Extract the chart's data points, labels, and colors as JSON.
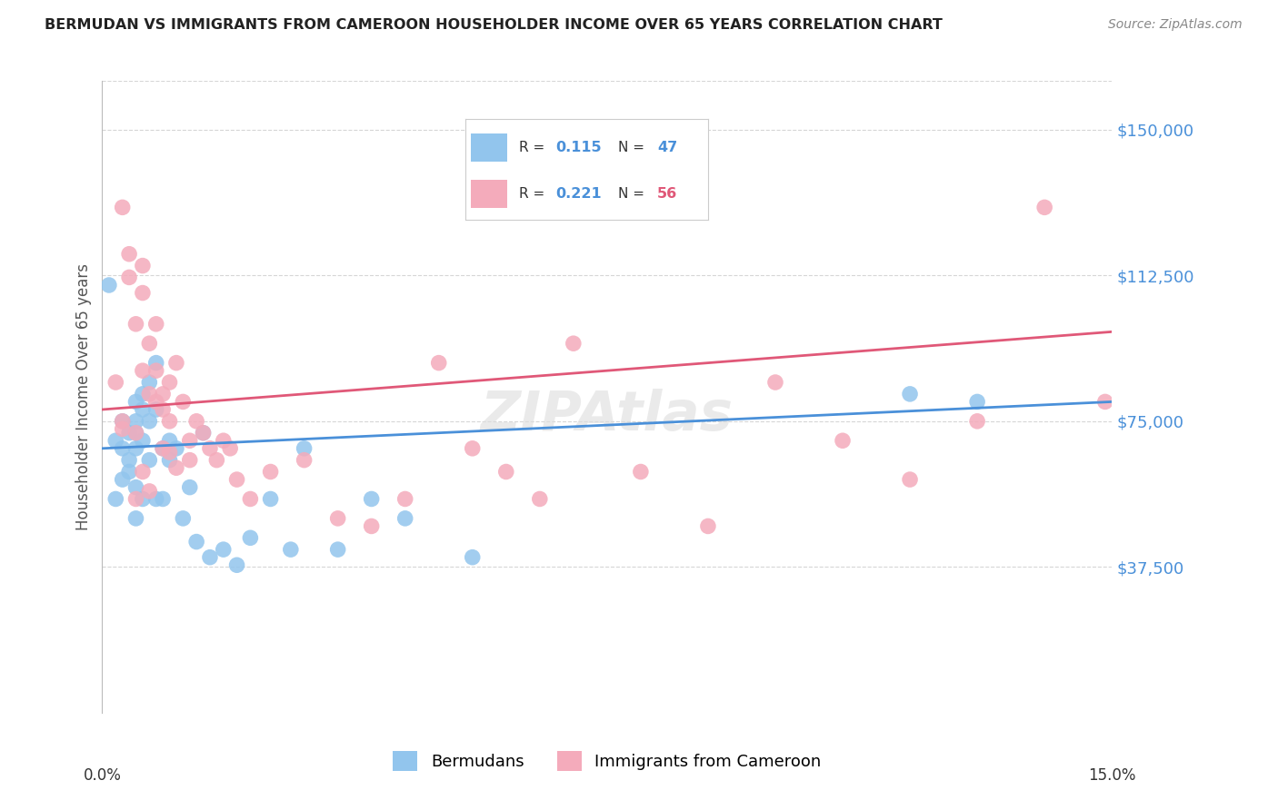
{
  "title": "BERMUDAN VS IMMIGRANTS FROM CAMEROON HOUSEHOLDER INCOME OVER 65 YEARS CORRELATION CHART",
  "source": "Source: ZipAtlas.com",
  "ylabel": "Householder Income Over 65 years",
  "ytick_labels": [
    "$37,500",
    "$75,000",
    "$112,500",
    "$150,000"
  ],
  "ytick_values": [
    37500,
    75000,
    112500,
    150000
  ],
  "xlim": [
    0.0,
    0.15
  ],
  "ylim": [
    0,
    162500
  ],
  "legend_r_blue": "0.115",
  "legend_n_blue": "47",
  "legend_r_pink": "0.221",
  "legend_n_pink": "56",
  "blue_color": "#92C5ED",
  "pink_color": "#F4ABBB",
  "blue_line_color": "#4A90D9",
  "pink_line_color": "#E05878",
  "blue_label": "Bermudans",
  "pink_label": "Immigrants from Cameroon",
  "background_color": "#ffffff",
  "grid_color": "#cccccc",
  "title_color": "#222222",
  "source_color": "#888888",
  "blue_x": [
    0.001,
    0.002,
    0.002,
    0.003,
    0.003,
    0.003,
    0.004,
    0.004,
    0.004,
    0.005,
    0.005,
    0.005,
    0.005,
    0.005,
    0.006,
    0.006,
    0.006,
    0.006,
    0.007,
    0.007,
    0.007,
    0.008,
    0.008,
    0.008,
    0.009,
    0.009,
    0.01,
    0.01,
    0.011,
    0.012,
    0.013,
    0.014,
    0.015,
    0.016,
    0.018,
    0.02,
    0.022,
    0.025,
    0.028,
    0.03,
    0.035,
    0.04,
    0.045,
    0.055,
    0.12,
    0.13,
    0.005
  ],
  "blue_y": [
    110000,
    70000,
    55000,
    75000,
    68000,
    60000,
    72000,
    65000,
    62000,
    80000,
    75000,
    72000,
    68000,
    50000,
    82000,
    78000,
    70000,
    55000,
    85000,
    75000,
    65000,
    90000,
    78000,
    55000,
    68000,
    55000,
    70000,
    65000,
    68000,
    50000,
    58000,
    44000,
    72000,
    40000,
    42000,
    38000,
    45000,
    55000,
    42000,
    68000,
    42000,
    55000,
    50000,
    40000,
    82000,
    80000,
    58000
  ],
  "pink_x": [
    0.002,
    0.003,
    0.003,
    0.004,
    0.004,
    0.005,
    0.005,
    0.006,
    0.006,
    0.006,
    0.007,
    0.007,
    0.008,
    0.008,
    0.009,
    0.009,
    0.01,
    0.01,
    0.011,
    0.012,
    0.013,
    0.013,
    0.014,
    0.015,
    0.016,
    0.017,
    0.018,
    0.019,
    0.02,
    0.022,
    0.025,
    0.03,
    0.035,
    0.04,
    0.05,
    0.06,
    0.07,
    0.08,
    0.09,
    0.1,
    0.11,
    0.12,
    0.13,
    0.14,
    0.003,
    0.005,
    0.006,
    0.007,
    0.008,
    0.009,
    0.01,
    0.011,
    0.045,
    0.055,
    0.065,
    0.149
  ],
  "pink_y": [
    85000,
    130000,
    75000,
    118000,
    112000,
    100000,
    72000,
    115000,
    108000,
    88000,
    95000,
    82000,
    100000,
    88000,
    82000,
    78000,
    85000,
    75000,
    90000,
    80000,
    70000,
    65000,
    75000,
    72000,
    68000,
    65000,
    70000,
    68000,
    60000,
    55000,
    62000,
    65000,
    50000,
    48000,
    90000,
    62000,
    95000,
    62000,
    48000,
    85000,
    70000,
    60000,
    75000,
    130000,
    73000,
    55000,
    62000,
    57000,
    80000,
    68000,
    67000,
    63000,
    55000,
    68000,
    55000,
    80000
  ]
}
